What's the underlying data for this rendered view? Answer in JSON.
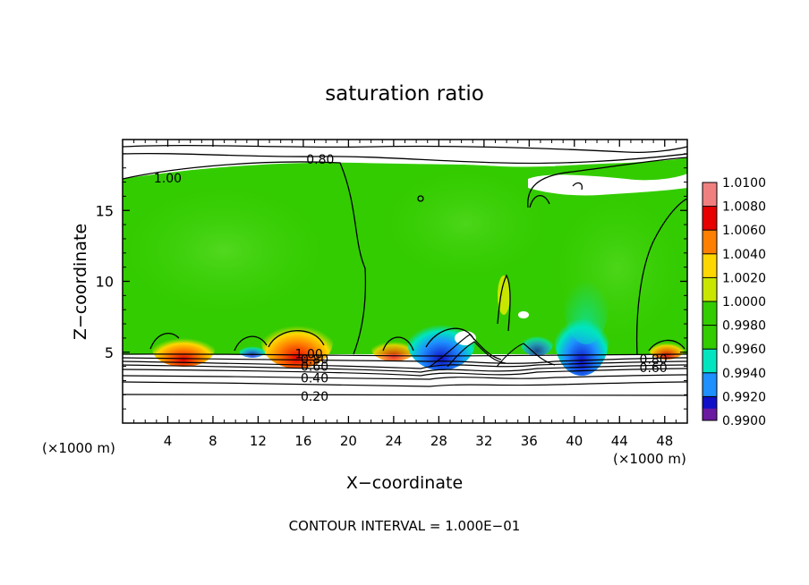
{
  "chart_data": {
    "type": "heatmap",
    "title": "saturation ratio",
    "xlabel": "X−coordinate",
    "ylabel": "Z−coordinate",
    "x_unit": "(×1000 m)",
    "y_unit": "(×1000 m)",
    "footer": "CONTOUR INTERVAL = 1.000E−01",
    "xlim": [
      0,
      50
    ],
    "ylim": [
      0,
      20
    ],
    "x_ticks": [
      4,
      8,
      12,
      16,
      20,
      24,
      28,
      32,
      36,
      40,
      44,
      48
    ],
    "y_ticks": [
      5,
      10,
      15
    ],
    "colorbar": {
      "min": 0.99,
      "max": 1.01,
      "labels": [
        "1.0100",
        "1.0080",
        "1.0060",
        "1.0040",
        "1.0020",
        "1.0000",
        "0.9980",
        "0.9960",
        "0.9940",
        "0.9920",
        "0.9900"
      ],
      "colors": [
        "#f08080",
        "#e60000",
        "#ff7f00",
        "#ffd700",
        "#c8e600",
        "#33cc00",
        "#33cc00",
        "#00e5bf",
        "#1e90ff",
        "#1010c8",
        "#6a1aa0"
      ]
    },
    "contour_labels": [
      {
        "text": "0.80",
        "x": 17.5,
        "y": 18.6
      },
      {
        "text": "1.00",
        "x": 4.0,
        "y": 17.3
      },
      {
        "text": "1.00",
        "x": 16.5,
        "y": 4.9
      },
      {
        "text": "0.80",
        "x": 17.0,
        "y": 4.5
      },
      {
        "text": "0.60",
        "x": 17.0,
        "y": 4.0
      },
      {
        "text": "0.40",
        "x": 17.0,
        "y": 3.2
      },
      {
        "text": "0.20",
        "x": 17.0,
        "y": 1.9
      },
      {
        "text": "0.80",
        "x": 47.0,
        "y": 4.5
      },
      {
        "text": "0.60",
        "x": 47.0,
        "y": 3.9
      }
    ]
  }
}
